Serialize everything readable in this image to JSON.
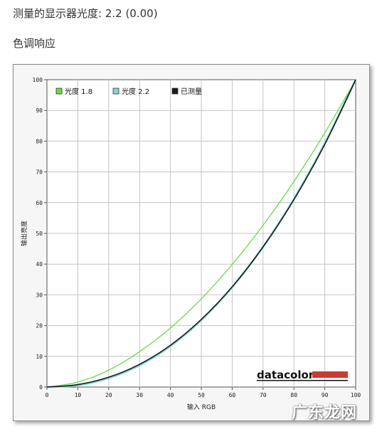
{
  "header": {
    "measured_label": "测量的显示器光度: 2.2 (0.00)",
    "section_title": "色调响应"
  },
  "chart_data": {
    "type": "line",
    "title": "",
    "xlabel": "输入 RGB",
    "ylabel": "输出亮度",
    "xlim": [
      0,
      100
    ],
    "ylim": [
      0,
      100
    ],
    "xticks": [
      "0",
      "10",
      "20",
      "30",
      "40",
      "50",
      "60",
      "70",
      "80",
      "90",
      "100"
    ],
    "yticks": [
      "0",
      "10",
      "20",
      "30",
      "40",
      "50",
      "60",
      "70",
      "80",
      "90",
      "100"
    ],
    "grid": true,
    "legend_position": "top-left",
    "x": [
      0,
      10,
      20,
      30,
      40,
      50,
      60,
      70,
      80,
      90,
      100
    ],
    "series": [
      {
        "name": "光度 1.8",
        "color": "#66dd44",
        "values": [
          0,
          1.6,
          5.5,
          11.5,
          19.2,
          28.7,
          39.9,
          52.6,
          66.9,
          82.7,
          100
        ]
      },
      {
        "name": "光度 2.2",
        "color": "#7fd6d6",
        "values": [
          0,
          0.6,
          2.9,
          7.1,
          13.3,
          21.8,
          32.5,
          45.6,
          61.2,
          79.3,
          100
        ]
      },
      {
        "name": "已测量",
        "color": "#1a1a1a",
        "values": [
          0,
          0.8,
          3.2,
          7.4,
          13.6,
          22.0,
          32.6,
          45.6,
          61.0,
          79.0,
          100
        ]
      }
    ],
    "brand_text": "datacolor",
    "brand_bar_color": "#cc3a33"
  },
  "watermark": "广东龙网"
}
